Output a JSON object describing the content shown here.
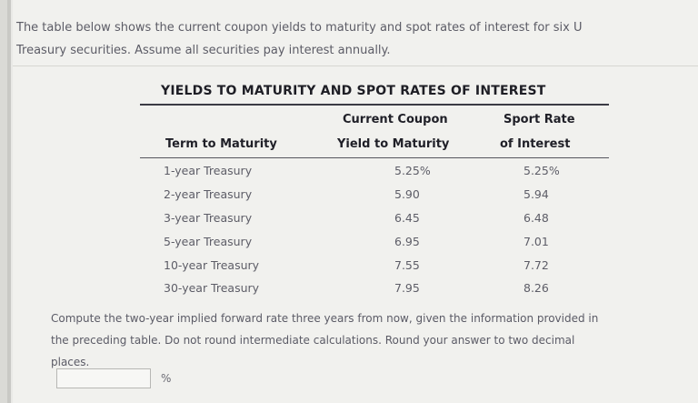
{
  "intro": {
    "line1": "The table below shows the current coupon yields to maturity and spot rates of interest for six U",
    "line2": "Treasury securities. Assume all securities pay interest annually."
  },
  "table": {
    "title": "YIELDS TO MATURITY AND SPOT RATES OF INTEREST",
    "headers": {
      "term": "Term to Maturity",
      "ytm_line1": "Current Coupon",
      "ytm_line2": "Yield to Maturity",
      "spot_line1": "Sport Rate",
      "spot_line2": "of Interest"
    },
    "rows": [
      {
        "term": "1-year Treasury",
        "ytm": "5.25%",
        "spot": "5.25%"
      },
      {
        "term": "2-year Treasury",
        "ytm": "5.90",
        "spot": "5.94"
      },
      {
        "term": "3-year Treasury",
        "ytm": "6.45",
        "spot": "6.48"
      },
      {
        "term": "5-year Treasury",
        "ytm": "6.95",
        "spot": "7.01"
      },
      {
        "term": "10-year Treasury",
        "ytm": "7.55",
        "spot": "7.72"
      },
      {
        "term": "30-year Treasury",
        "ytm": "7.95",
        "spot": "8.26"
      }
    ]
  },
  "question": {
    "line1": "Compute the two-year implied forward rate three years from now, given the information provided in",
    "line2": "the preceding table. Do not round intermediate calculations. Round your answer to two decimal",
    "line3": "places."
  },
  "answer": {
    "value": "",
    "unit": "%"
  }
}
